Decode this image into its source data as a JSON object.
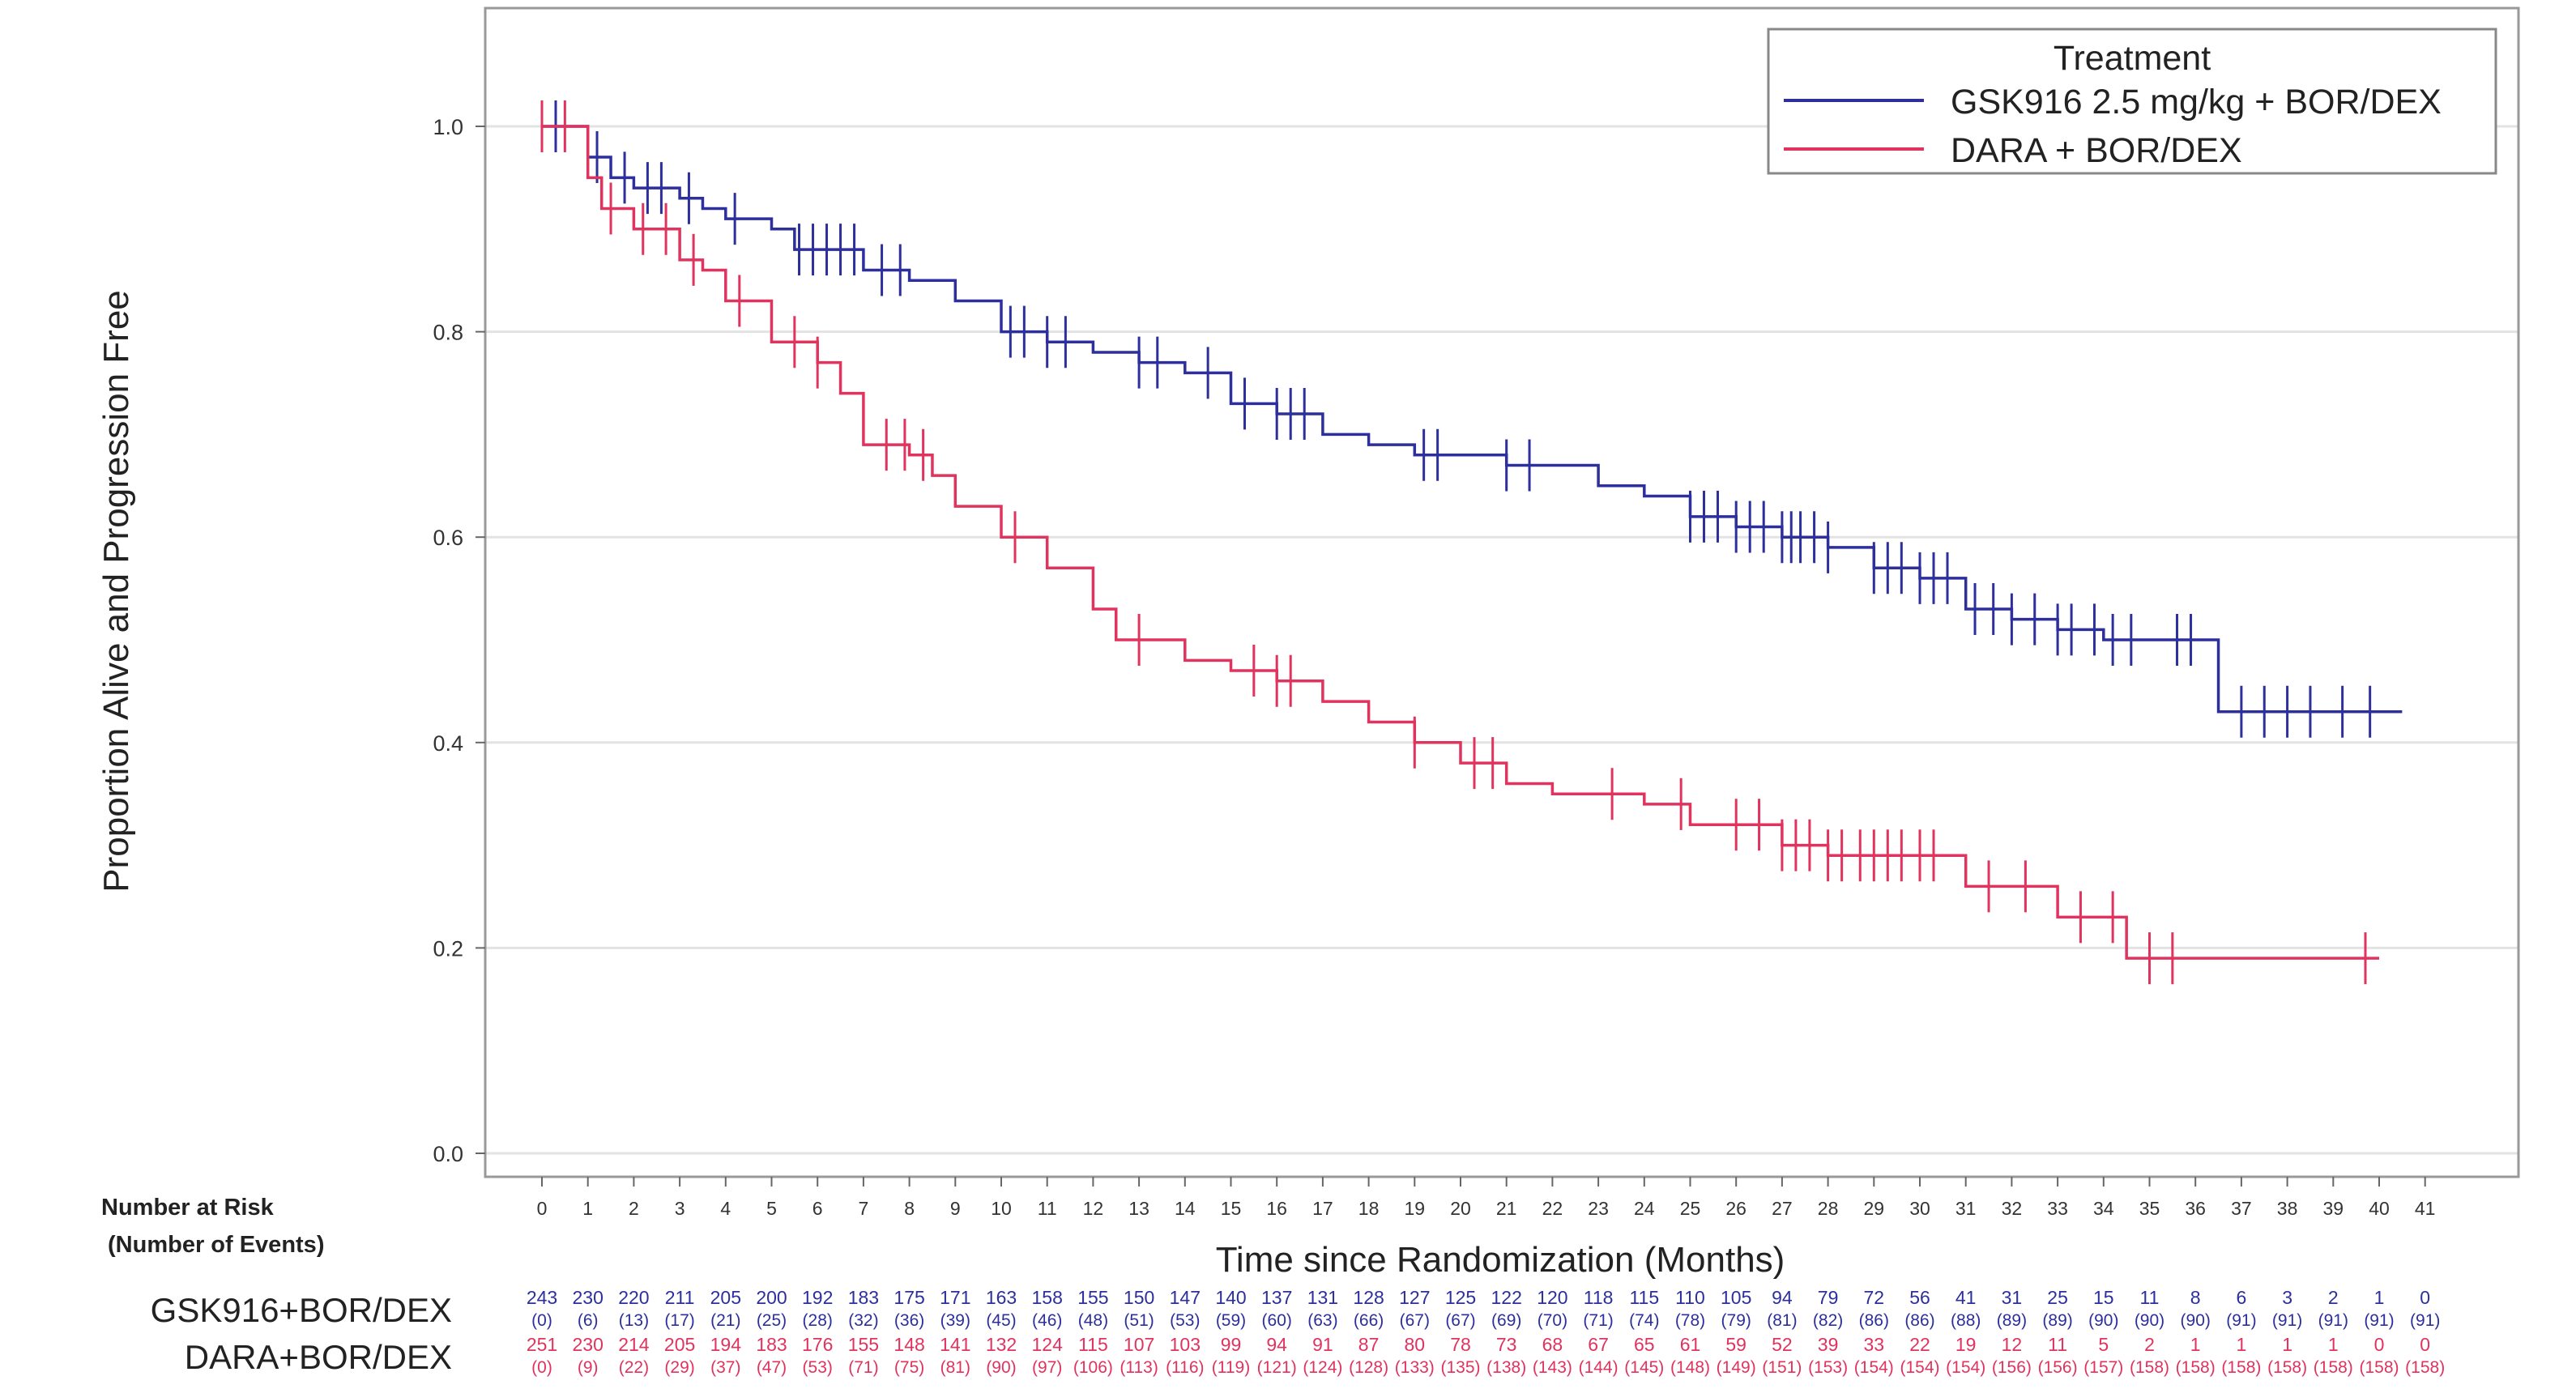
{
  "chart_data": {
    "type": "line",
    "subtype": "kaplan-meier step",
    "xlabel": "Time since Randomization (Months)",
    "ylabel": "Proportion Alive and Progression Free",
    "xlim": [
      -1,
      44
    ],
    "ylim": [
      -0.02,
      1.1
    ],
    "xticks": [
      0,
      1,
      2,
      3,
      4,
      5,
      6,
      7,
      8,
      9,
      10,
      11,
      12,
      13,
      14,
      15,
      16,
      17,
      18,
      19,
      20,
      21,
      22,
      23,
      24,
      25,
      26,
      27,
      28,
      29,
      30,
      31,
      32,
      33,
      34,
      35,
      36,
      37,
      38,
      39,
      40,
      41
    ],
    "yticks": [
      "0.0",
      "0.2",
      "0.4",
      "0.6",
      "0.8",
      "1.0"
    ],
    "grid": "horizontal",
    "legend": {
      "title": "Treatment",
      "placement": "top-right"
    },
    "series": [
      {
        "name": "GSK916 2.5 mg/kg + BOR/DEX",
        "color": "#2c2f9c",
        "steps": [
          [
            0,
            1.0
          ],
          [
            1,
            0.97
          ],
          [
            1.5,
            0.95
          ],
          [
            2,
            0.94
          ],
          [
            3,
            0.93
          ],
          [
            3.5,
            0.92
          ],
          [
            4,
            0.91
          ],
          [
            5,
            0.9
          ],
          [
            5.5,
            0.88
          ],
          [
            7,
            0.86
          ],
          [
            8,
            0.85
          ],
          [
            9,
            0.83
          ],
          [
            10,
            0.8
          ],
          [
            11,
            0.79
          ],
          [
            12,
            0.78
          ],
          [
            13,
            0.77
          ],
          [
            14,
            0.76
          ],
          [
            15,
            0.73
          ],
          [
            16,
            0.72
          ],
          [
            17,
            0.7
          ],
          [
            18,
            0.69
          ],
          [
            19,
            0.68
          ],
          [
            21,
            0.67
          ],
          [
            23,
            0.65
          ],
          [
            24,
            0.64
          ],
          [
            25,
            0.62
          ],
          [
            26,
            0.61
          ],
          [
            27,
            0.6
          ],
          [
            28,
            0.59
          ],
          [
            29,
            0.57
          ],
          [
            30,
            0.56
          ],
          [
            31,
            0.53
          ],
          [
            32,
            0.52
          ],
          [
            33,
            0.51
          ],
          [
            34,
            0.5
          ],
          [
            36.5,
            0.43
          ],
          [
            40.5,
            0.43
          ]
        ],
        "censored": [
          0.3,
          1.2,
          1.8,
          2.3,
          2.6,
          3.2,
          4.2,
          5.6,
          5.9,
          6.2,
          6.5,
          6.8,
          7.4,
          7.8,
          10.2,
          10.5,
          11,
          11.4,
          13,
          13.4,
          14.5,
          15.3,
          16,
          16.3,
          16.6,
          19.2,
          19.5,
          21,
          21.5,
          25,
          25.3,
          25.6,
          26,
          26.3,
          26.6,
          27,
          27.2,
          27.4,
          27.7,
          28,
          29,
          29.3,
          29.6,
          30,
          30.3,
          30.6,
          31.2,
          31.6,
          32,
          32.5,
          33,
          33.3,
          33.8,
          34.2,
          34.6,
          35.6,
          35.9,
          37,
          37.5,
          38,
          38.5,
          39.2,
          39.8
        ]
      },
      {
        "name": "DARA + BOR/DEX",
        "color": "#e0335e",
        "steps": [
          [
            0,
            1.0
          ],
          [
            1,
            0.95
          ],
          [
            1.3,
            0.92
          ],
          [
            2,
            0.9
          ],
          [
            3,
            0.87
          ],
          [
            3.5,
            0.86
          ],
          [
            4,
            0.83
          ],
          [
            5,
            0.79
          ],
          [
            6,
            0.77
          ],
          [
            6.5,
            0.74
          ],
          [
            7,
            0.69
          ],
          [
            8,
            0.68
          ],
          [
            8.5,
            0.66
          ],
          [
            9,
            0.63
          ],
          [
            10,
            0.6
          ],
          [
            11,
            0.57
          ],
          [
            12,
            0.53
          ],
          [
            12.5,
            0.5
          ],
          [
            14,
            0.48
          ],
          [
            15,
            0.47
          ],
          [
            16,
            0.46
          ],
          [
            17,
            0.44
          ],
          [
            18,
            0.42
          ],
          [
            19,
            0.4
          ],
          [
            20,
            0.38
          ],
          [
            21,
            0.36
          ],
          [
            22,
            0.35
          ],
          [
            24,
            0.34
          ],
          [
            25,
            0.32
          ],
          [
            27,
            0.3
          ],
          [
            28,
            0.29
          ],
          [
            31,
            0.26
          ],
          [
            33,
            0.23
          ],
          [
            34.5,
            0.19
          ],
          [
            40,
            0.19
          ]
        ],
        "censored": [
          0,
          0.5,
          1.5,
          2.2,
          2.7,
          3.3,
          4.3,
          5.5,
          6,
          7.5,
          7.9,
          8.3,
          10.3,
          13,
          15.5,
          16,
          16.3,
          19,
          20.3,
          20.7,
          23.3,
          24.8,
          26,
          26.5,
          27,
          27.3,
          27.6,
          28,
          28.3,
          28.7,
          29,
          29.3,
          29.6,
          30,
          30.3,
          31.5,
          32.3,
          33.5,
          34.2,
          35,
          35.5,
          39.7
        ]
      }
    ],
    "risk_table": {
      "title_line1": "Number at Risk",
      "title_line2": "(Number of Events)",
      "rows": [
        {
          "label": "GSK916+BOR/DEX",
          "color": "#2c2f9c",
          "at_risk": [
            243,
            230,
            220,
            211,
            205,
            200,
            192,
            183,
            175,
            171,
            163,
            158,
            155,
            150,
            147,
            140,
            137,
            131,
            128,
            127,
            125,
            122,
            120,
            118,
            115,
            110,
            105,
            94,
            79,
            72,
            56,
            41,
            31,
            25,
            15,
            11,
            8,
            6,
            3,
            2,
            1,
            0
          ],
          "events": [
            0,
            6,
            13,
            17,
            21,
            25,
            28,
            32,
            36,
            39,
            45,
            46,
            48,
            51,
            53,
            59,
            60,
            63,
            66,
            67,
            67,
            69,
            70,
            71,
            74,
            78,
            79,
            81,
            82,
            86,
            86,
            88,
            89,
            89,
            90,
            90,
            90,
            91,
            91,
            91,
            91,
            91
          ]
        },
        {
          "label": "DARA+BOR/DEX",
          "color": "#e0335e",
          "at_risk": [
            251,
            230,
            214,
            205,
            194,
            183,
            176,
            155,
            148,
            141,
            132,
            124,
            115,
            107,
            103,
            99,
            94,
            91,
            87,
            80,
            78,
            73,
            68,
            67,
            65,
            61,
            59,
            52,
            39,
            33,
            22,
            19,
            12,
            11,
            5,
            2,
            1,
            1,
            1,
            1,
            0,
            0
          ],
          "events": [
            0,
            9,
            22,
            29,
            37,
            47,
            53,
            71,
            75,
            81,
            90,
            97,
            106,
            113,
            116,
            119,
            121,
            124,
            128,
            133,
            135,
            138,
            143,
            144,
            145,
            148,
            149,
            151,
            153,
            154,
            154,
            154,
            156,
            156,
            157,
            158,
            158,
            158,
            158,
            158,
            158,
            158
          ]
        }
      ]
    }
  }
}
